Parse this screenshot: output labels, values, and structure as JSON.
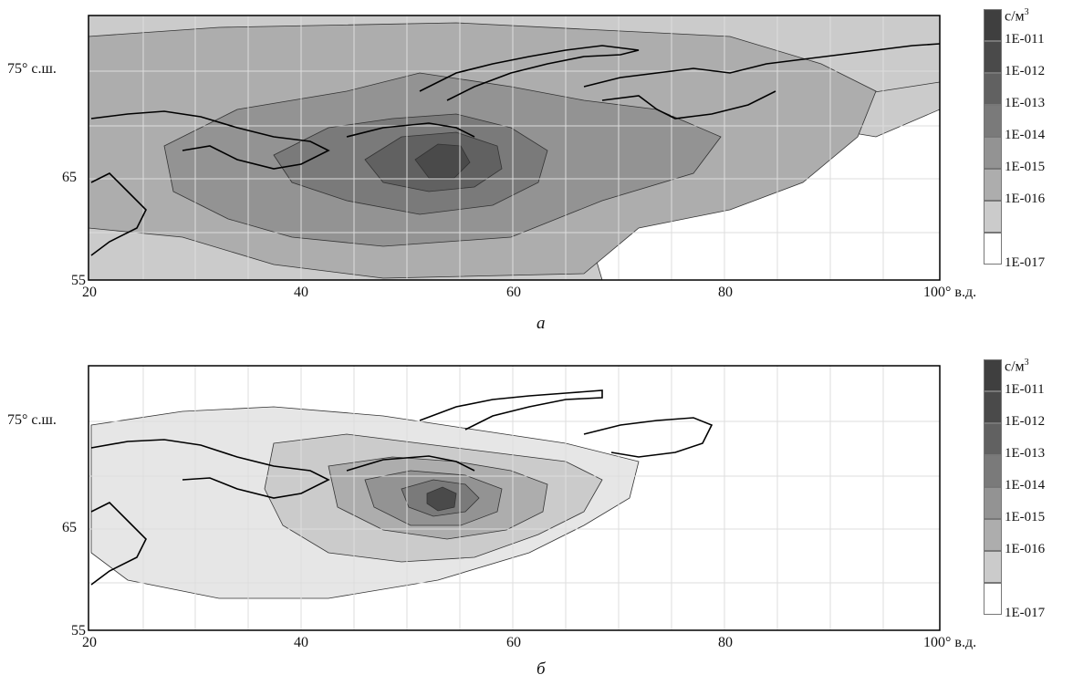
{
  "legend_unit": "с/м",
  "legend_unit_exp": "3",
  "legend_levels": [
    "1E-011",
    "1E-012",
    "1E-013",
    "1E-014",
    "1E-015",
    "1E-016",
    "1E-017"
  ],
  "legend_colors": [
    "#4a4a4a",
    "#616161",
    "#7a7a7a",
    "#939393",
    "#adadad",
    "#cbcbcb",
    "#ffffff"
  ],
  "axis": {
    "x_ticks": [
      "20",
      "40",
      "60",
      "80",
      "100° в.д."
    ],
    "y_ticks": [
      "75° с.ш.",
      "65",
      "55"
    ]
  },
  "panels": [
    {
      "caption": "а"
    },
    {
      "caption": "б"
    }
  ]
}
